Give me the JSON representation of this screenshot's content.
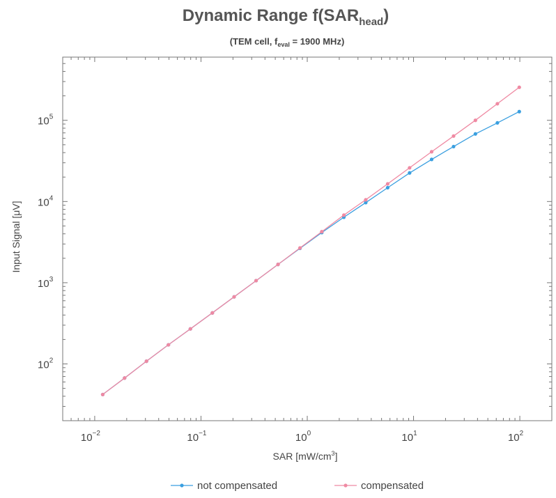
{
  "title": {
    "main": "Dynamic Range f(SAR",
    "sub": "head",
    "close": ")"
  },
  "subtitle": {
    "main": "(TEM cell, f",
    "sub": "eval",
    "rest": " = 1900 MHz)"
  },
  "chart_data": {
    "type": "line",
    "xscale": "log",
    "yscale": "log",
    "xlim": [
      0.005,
      200
    ],
    "ylim": [
      20,
      600000
    ],
    "xlabel": "SAR [mW/cm³]",
    "xlabel_parts": {
      "main": "SAR [mW/cm",
      "sup": "3",
      "close": "]"
    },
    "ylabel": "Input Signal [μV]",
    "x_ticks": [
      {
        "value": 0.01,
        "base": "10",
        "exp": "−2"
      },
      {
        "value": 0.1,
        "base": "10",
        "exp": "−1"
      },
      {
        "value": 1,
        "base": "10",
        "exp": "0"
      },
      {
        "value": 10,
        "base": "10",
        "exp": "1"
      },
      {
        "value": 100,
        "base": "10",
        "exp": "2"
      }
    ],
    "y_ticks": [
      {
        "value": 100,
        "base": "10",
        "exp": "2"
      },
      {
        "value": 1000,
        "base": "10",
        "exp": "3"
      },
      {
        "value": 10000,
        "base": "10",
        "exp": "4"
      },
      {
        "value": 100000,
        "base": "10",
        "exp": "5"
      }
    ],
    "grid": false,
    "legend_position": "bottom",
    "series": [
      {
        "name": "not compensated",
        "color": "#3a9fe0",
        "x": [
          0.0119,
          0.0191,
          0.0307,
          0.0494,
          0.0795,
          0.128,
          0.205,
          0.33,
          0.531,
          0.854,
          1.37,
          2.21,
          3.55,
          5.71,
          9.18,
          14.8,
          23.8,
          38.2,
          61.5,
          98.8
        ],
        "y": [
          42,
          67,
          108,
          172,
          270,
          425,
          670,
          1060,
          1680,
          2650,
          4150,
          6400,
          9700,
          14800,
          22500,
          33000,
          47500,
          68000,
          93000,
          128000
        ]
      },
      {
        "name": "compensated",
        "color": "#ef8aa3",
        "x": [
          0.0119,
          0.0191,
          0.0307,
          0.0494,
          0.0795,
          0.128,
          0.205,
          0.33,
          0.531,
          0.854,
          1.37,
          2.21,
          3.55,
          5.71,
          9.18,
          14.8,
          23.8,
          38.2,
          61.5,
          98.8
        ],
        "y": [
          42,
          67,
          108,
          172,
          270,
          425,
          670,
          1060,
          1680,
          2680,
          4250,
          6800,
          10500,
          16500,
          26000,
          41000,
          64000,
          100000,
          160000,
          255000
        ]
      }
    ]
  }
}
